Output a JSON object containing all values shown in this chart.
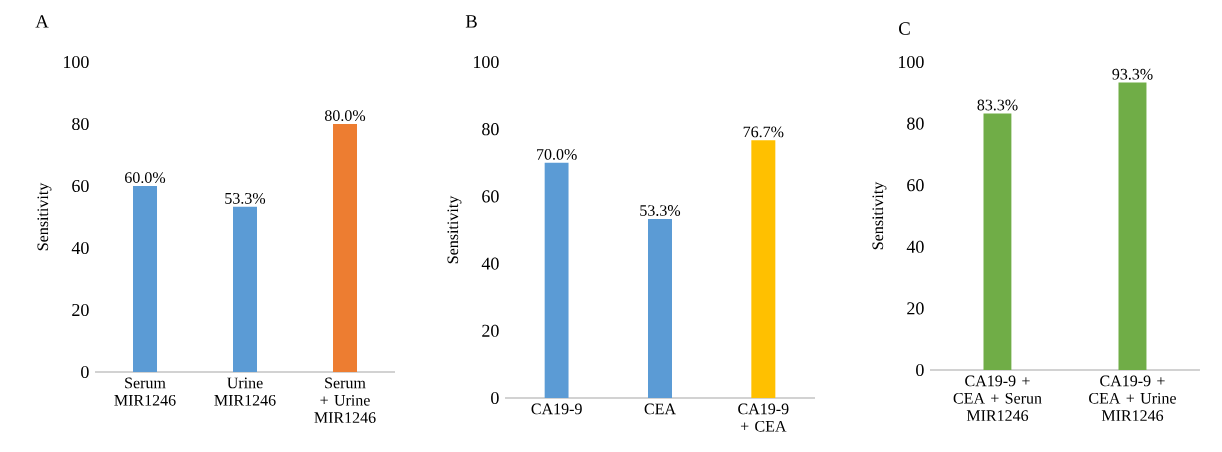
{
  "chart_data": [
    {
      "type": "bar",
      "title": "A",
      "ylabel": "Sensitivity",
      "categories": [
        "Serum MIR1246",
        "Urine MIR1246",
        "Serum + Urine MIR1246"
      ],
      "values": [
        60.0,
        53.3,
        80.0
      ],
      "colors": [
        "#5b9bd5",
        "#5b9bd5",
        "#ed7d31"
      ],
      "value_labels": [
        "60.0%",
        "53.3%",
        "80.0%"
      ],
      "ylim": [
        0,
        100
      ],
      "yticks": [
        0,
        20,
        40,
        60,
        80,
        100
      ]
    },
    {
      "type": "bar",
      "title": "B",
      "ylabel": "Sensitivity",
      "categories": [
        "CA19-9",
        "CEA",
        "CA19-9 + CEA"
      ],
      "values": [
        70.0,
        53.3,
        76.7
      ],
      "colors": [
        "#5b9bd5",
        "#5b9bd5",
        "#ffc000"
      ],
      "value_labels": [
        "70.0%",
        "53.3%",
        "76.7%"
      ],
      "ylim": [
        0,
        100
      ],
      "yticks": [
        0,
        20,
        40,
        60,
        80,
        100
      ]
    },
    {
      "type": "bar",
      "title": "C",
      "ylabel": "Sensitivity",
      "categories": [
        "CA19-9 + CEA + Serun MIR1246",
        "CA19-9 + CEA + Urine MIR1246"
      ],
      "values": [
        83.3,
        93.3
      ],
      "colors": [
        "#70ad47",
        "#70ad47"
      ],
      "value_labels": [
        "83.3%",
        "93.3%"
      ],
      "ylim": [
        0,
        100
      ],
      "yticks": [
        0,
        20,
        40,
        60,
        80,
        100
      ]
    }
  ]
}
